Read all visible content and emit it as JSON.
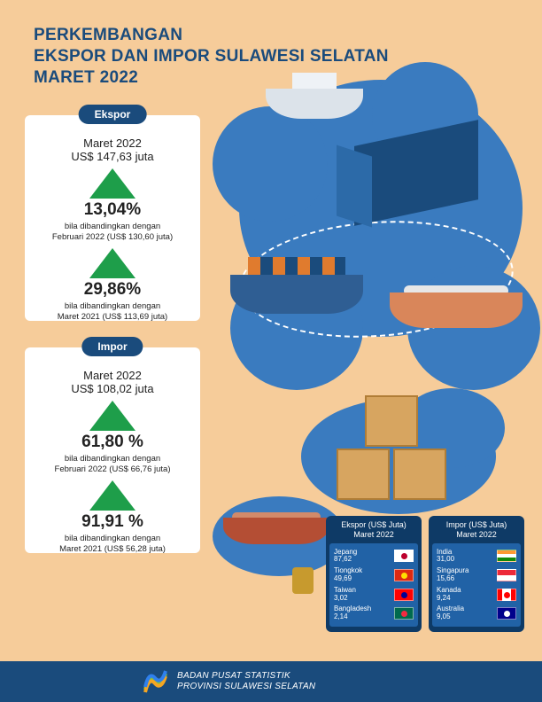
{
  "colors": {
    "page_bg": "#f6cc9a",
    "primary": "#1a4b7c",
    "cloud": "#3a7bbf",
    "arrow_up": "#1e9e4a",
    "card_bg": "#ffffff",
    "table_head": "#0e3a66",
    "table_body": "#2162a6"
  },
  "title": {
    "line1": "PERKEMBANGAN",
    "line2": "EKSPOR DAN IMPOR SULAWESI SELATAN",
    "line3": "MARET 2022",
    "fontsize": 19,
    "color": "#1a4b7c"
  },
  "ekspor": {
    "tab": "Ekspor",
    "period": "Maret 2022",
    "amount": "US$ 147,63 juta",
    "rows": [
      {
        "pct": "13,04%",
        "compare1": "bila dibandingkan dengan",
        "compare2": "Februari 2022 (US$ 130,60 juta)"
      },
      {
        "pct": "29,86%",
        "compare1": "bila dibandingkan dengan",
        "compare2": "Maret 2021 (US$ 113,69 juta)"
      }
    ]
  },
  "impor": {
    "tab": "Impor",
    "period": "Maret 2022",
    "amount": "US$ 108,02 juta",
    "rows": [
      {
        "pct": "61,80 %",
        "compare1": "bila dibandingkan dengan",
        "compare2": "Februari 2022 (US$ 66,76 juta)"
      },
      {
        "pct": "91,91 %",
        "compare1": "bila dibandingkan dengan",
        "compare2": "Maret 2021 (US$ 56,28 juta)"
      }
    ]
  },
  "table_ekspor": {
    "head1": "Ekspor (US$ Juta)",
    "head2": "Maret 2022",
    "rows": [
      {
        "country": "Jepang",
        "value": "87,62",
        "flag_bg": "#ffffff",
        "flag_dot": "#bc002d"
      },
      {
        "country": "Tiongkok",
        "value": "49,69",
        "flag_bg": "#de2910",
        "flag_dot": "#ffde00"
      },
      {
        "country": "Taiwan",
        "value": "3,02",
        "flag_bg": "#fe0000",
        "flag_dot": "#000095"
      },
      {
        "country": "Bangladesh",
        "value": "2,14",
        "flag_bg": "#006a4e",
        "flag_dot": "#f42a41"
      }
    ]
  },
  "table_impor": {
    "head1": "Impor (US$ Juta)",
    "head2": "Maret 2022",
    "rows": [
      {
        "country": "India",
        "value": "31,00",
        "flag_bg": "linear-gradient(#ff9933 33%,#ffffff 33% 66%,#138808 66%)",
        "flag_dot": "transparent"
      },
      {
        "country": "Singapura",
        "value": "15,66",
        "flag_bg": "linear-gradient(#ed2939 50%,#ffffff 50%)",
        "flag_dot": "transparent"
      },
      {
        "country": "Kanada",
        "value": "9,24",
        "flag_bg": "linear-gradient(90deg,#ff0000 25%,#ffffff 25% 75%,#ff0000 75%)",
        "flag_dot": "#ff0000"
      },
      {
        "country": "Australia",
        "value": "9,05",
        "flag_bg": "#00008b",
        "flag_dot": "#ffffff"
      }
    ]
  },
  "footer": {
    "line1": "BADAN PUSAT STATISTIK",
    "line2": "PROVINSI SULAWESI SELATAN"
  }
}
